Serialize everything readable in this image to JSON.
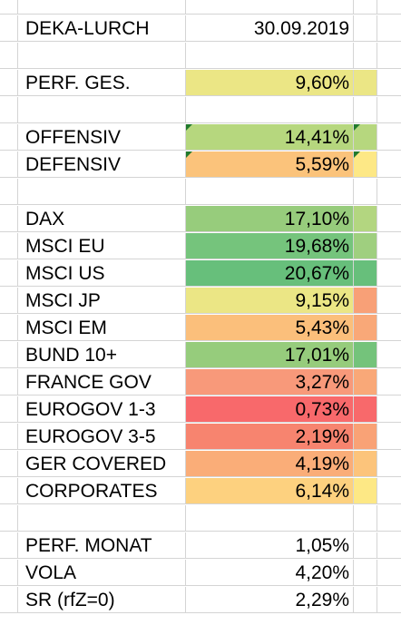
{
  "rows": [
    {
      "label": "DEKA-LURCH",
      "value": "30.09.2019",
      "fill": "",
      "d_fill": ""
    },
    {
      "label": "",
      "value": "",
      "fill": "",
      "d_fill": ""
    },
    {
      "label": "PERF. GES.",
      "value": "9,60%",
      "fill": "#ebe685",
      "d_fill": "#ebe685"
    },
    {
      "label": "",
      "value": "",
      "fill": "",
      "d_fill": ""
    },
    {
      "label": "OFFENSIV",
      "value": "14,41%",
      "fill": "#b6d77e",
      "d_fill": "#b6d77e",
      "comment": true
    },
    {
      "label": "DEFENSIV",
      "value": "5,59%",
      "fill": "#fbc37b",
      "d_fill": "#fde886",
      "comment": true
    },
    {
      "label": "",
      "value": "",
      "fill": "",
      "d_fill": ""
    },
    {
      "label": "DAX",
      "value": "17,10%",
      "fill": "#97cc7c",
      "d_fill": "#b3d680"
    },
    {
      "label": "MSCI EU",
      "value": "19,68%",
      "fill": "#75c47c",
      "d_fill": "#9fcf7f"
    },
    {
      "label": "MSCI US",
      "value": "20,67%",
      "fill": "#67bf7b",
      "d_fill": "#67bf7b"
    },
    {
      "label": "MSCI JP",
      "value": "9,15%",
      "fill": "#ebe685",
      "d_fill": "#f8a077"
    },
    {
      "label": "MSCI EM",
      "value": "5,43%",
      "fill": "#fbbf7b",
      "d_fill": "#f9a878"
    },
    {
      "label": "BUND 10+",
      "value": "17,01%",
      "fill": "#96cc7c",
      "d_fill": "#74c37b"
    },
    {
      "label": "FRANCE GOV",
      "value": "3,27%",
      "fill": "#f8997a",
      "d_fill": "#f9a878"
    },
    {
      "label": "EUROGOV 1-3",
      "value": "0,73%",
      "fill": "#f8696b",
      "d_fill": "#f8696b"
    },
    {
      "label": "EUROGOV 3-5",
      "value": "2,19%",
      "fill": "#f7846f",
      "d_fill": "#f9a276"
    },
    {
      "label": "GER COVERED",
      "value": "4,19%",
      "fill": "#faad78",
      "d_fill": "#fcc47b"
    },
    {
      "label": "CORPORATES",
      "value": "6,14%",
      "fill": "#fdd17f",
      "d_fill": "#fde885"
    },
    {
      "label": "",
      "value": "",
      "fill": "",
      "d_fill": ""
    },
    {
      "label": "PERF. MONAT",
      "value": "1,05%",
      "fill": "",
      "d_fill": ""
    },
    {
      "label": "VOLA",
      "value": "4,20%",
      "fill": "",
      "d_fill": ""
    },
    {
      "label": "SR (rfZ=0)",
      "value": "2,29%",
      "fill": "",
      "d_fill": ""
    }
  ]
}
